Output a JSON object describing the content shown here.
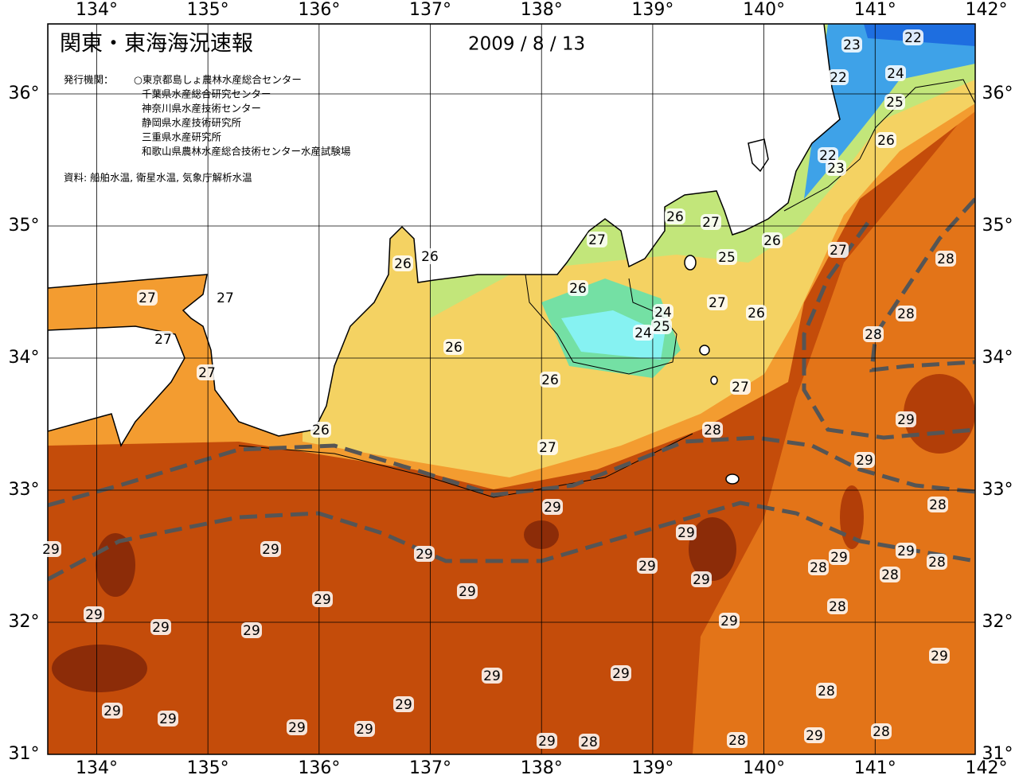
{
  "map": {
    "title": "関東・東海海況速報",
    "date": "2009 / 8 / 13",
    "publisher_label": "発行機関：",
    "publishers": [
      "○東京都島しょ農林水産総合センター",
      "千葉県水産総合研究センター",
      "神奈川県水産技術センター",
      "静岡県水産技術研究所",
      "三重県水産研究所",
      "和歌山県農林水産総合技術センター水産試験場"
    ],
    "sources": "資料: 船舶水温, 衛星水温, 気象庁解析水温",
    "xlim": [
      133.56,
      141.9
    ],
    "ylim": [
      31,
      36.53
    ],
    "xticks": [
      {
        "value": 134,
        "label": "134°"
      },
      {
        "value": 135,
        "label": "135°"
      },
      {
        "value": 136,
        "label": "136°"
      },
      {
        "value": 137,
        "label": "137°"
      },
      {
        "value": 138,
        "label": "138°"
      },
      {
        "value": 139,
        "label": "139°"
      },
      {
        "value": 140,
        "label": "140°"
      },
      {
        "value": 141,
        "label": "141°"
      },
      {
        "value": 142,
        "label": "142°"
      }
    ],
    "yticks": [
      {
        "value": 31,
        "label": "31°"
      },
      {
        "value": 32,
        "label": "32°"
      },
      {
        "value": 33,
        "label": "33°"
      },
      {
        "value": 34,
        "label": "34°"
      },
      {
        "value": 35,
        "label": "35°"
      },
      {
        "value": 36,
        "label": "36°"
      }
    ],
    "contour_labels": [
      23,
      22,
      24,
      22,
      25,
      26,
      22,
      23,
      26,
      27,
      26,
      25,
      27,
      28,
      27,
      26,
      26,
      27,
      27,
      27,
      27,
      26,
      24,
      25,
      24,
      27,
      26,
      28,
      28,
      26,
      26,
      27,
      29,
      28,
      27,
      26,
      29,
      29,
      28,
      29,
      29,
      29,
      29,
      29,
      29,
      28,
      28,
      29,
      29,
      28,
      29,
      29,
      28,
      29,
      29,
      29,
      29,
      29,
      29,
      29,
      28,
      29,
      29,
      29,
      29,
      29,
      28,
      29,
      28,
      29,
      28
    ]
  }
}
